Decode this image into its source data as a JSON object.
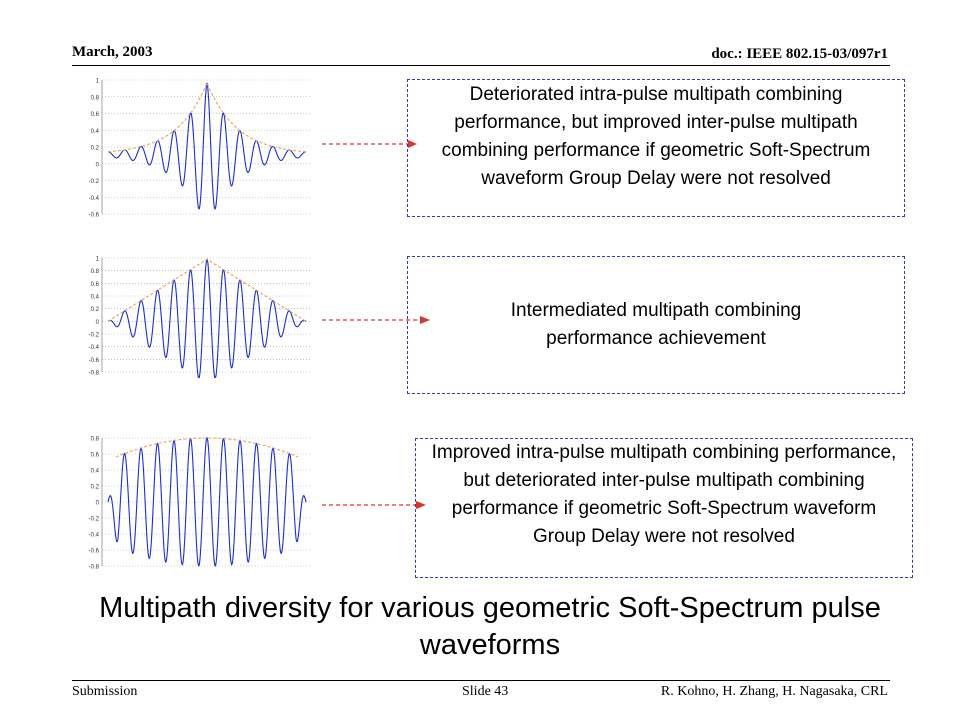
{
  "header": {
    "date": "March, 2003",
    "doc_id": "doc.: IEEE 802.15-03/097r1"
  },
  "footer": {
    "left": "Submission",
    "slide": "Slide 43",
    "authors": "R. Kohno, H. Zhang, H. Nagasaka, CRL"
  },
  "title": "Multipath diversity for various geometric Soft-Spectrum pulse waveforms",
  "rows": [
    {
      "description": "Deteriorated intra-pulse multipath combining performance, but improved inter-pulse multipath combining performance if geometric Soft-Spectrum waveform Group Delay were not resolved"
    },
    {
      "description": "Intermediated multipath combining performance achievement"
    },
    {
      "description": "Improved intra-pulse multipath combining performance, but deteriorated inter-pulse multipath combining performance if geometric Soft-Spectrum waveform Group Delay were not resolved"
    }
  ],
  "colors": {
    "waveform": "#1a2fd0",
    "envelope": "#e8a060",
    "arrow": "#e03030",
    "box_border": "#2a3f9e"
  },
  "chart_data": [
    {
      "type": "line",
      "ylim": [
        -0.8,
        1.0
      ],
      "envelope": "exponential",
      "yticks": [
        "1",
        "0.8",
        "0.6",
        "0.4",
        "0.2",
        "0",
        "-0.2",
        "-0.4",
        "-0.6"
      ]
    },
    {
      "type": "line",
      "ylim": [
        -0.8,
        1.0
      ],
      "envelope": "triangular",
      "yticks": [
        "1",
        "0.8",
        "0.6",
        "0.4",
        "0.2",
        "0",
        "-0.2",
        "-0.4",
        "-0.6",
        "-0.8"
      ]
    },
    {
      "type": "line",
      "ylim": [
        -0.8,
        0.8
      ],
      "envelope": "parabolic",
      "yticks": [
        "0.8",
        "0.6",
        "0.4",
        "0.2",
        "0",
        "-0.2",
        "-0.4",
        "-0.6",
        "-0.8"
      ]
    }
  ]
}
